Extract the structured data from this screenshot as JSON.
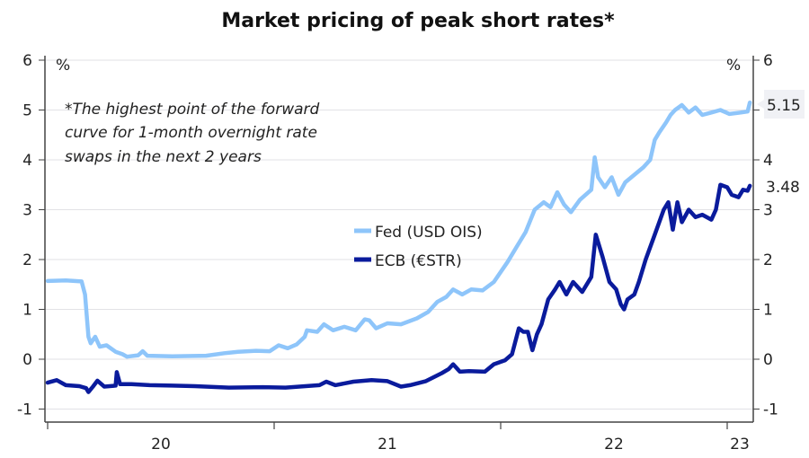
{
  "chart_data": {
    "type": "line",
    "title": "Market pricing of peak short rates*",
    "note": [
      "*The highest point of the forward",
      "curve for 1-month overnight rate",
      "swaps in the next 2 years"
    ],
    "ylabel_left": "%",
    "ylabel_right": "%",
    "ylim": [
      -1,
      6
    ],
    "yticks": [
      -1,
      0,
      1,
      2,
      3,
      4,
      5,
      6
    ],
    "yticks_right": [
      -1,
      0,
      1,
      2,
      3,
      4,
      6
    ],
    "xlim": [
      2020.0,
      2023.12
    ],
    "xticks": [
      2020,
      2021,
      2022,
      2023
    ],
    "xtick_labels": [
      "20",
      "21",
      "22",
      "23"
    ],
    "grid": true,
    "legend_position": "center",
    "series": [
      {
        "name": "Fed (USD OIS)",
        "color": "#8ec5fa",
        "end_label": "5.15",
        "points": [
          [
            2020.0,
            1.57
          ],
          [
            2020.08,
            1.58
          ],
          [
            2020.15,
            1.56
          ],
          [
            2020.165,
            1.3
          ],
          [
            2020.18,
            0.45
          ],
          [
            2020.19,
            0.32
          ],
          [
            2020.21,
            0.45
          ],
          [
            2020.23,
            0.25
          ],
          [
            2020.26,
            0.28
          ],
          [
            2020.3,
            0.15
          ],
          [
            2020.33,
            0.1
          ],
          [
            2020.35,
            0.05
          ],
          [
            2020.4,
            0.08
          ],
          [
            2020.42,
            0.16
          ],
          [
            2020.44,
            0.07
          ],
          [
            2020.55,
            0.06
          ],
          [
            2020.7,
            0.07
          ],
          [
            2020.78,
            0.12
          ],
          [
            2020.84,
            0.15
          ],
          [
            2020.92,
            0.17
          ],
          [
            2020.98,
            0.16
          ],
          [
            2021.02,
            0.28
          ],
          [
            2021.06,
            0.22
          ],
          [
            2021.1,
            0.3
          ],
          [
            2021.135,
            0.45
          ],
          [
            2021.145,
            0.58
          ],
          [
            2021.19,
            0.55
          ],
          [
            2021.22,
            0.7
          ],
          [
            2021.26,
            0.58
          ],
          [
            2021.31,
            0.65
          ],
          [
            2021.36,
            0.58
          ],
          [
            2021.4,
            0.8
          ],
          [
            2021.42,
            0.78
          ],
          [
            2021.45,
            0.62
          ],
          [
            2021.5,
            0.72
          ],
          [
            2021.56,
            0.7
          ],
          [
            2021.63,
            0.82
          ],
          [
            2021.68,
            0.95
          ],
          [
            2021.72,
            1.15
          ],
          [
            2021.76,
            1.25
          ],
          [
            2021.79,
            1.4
          ],
          [
            2021.83,
            1.3
          ],
          [
            2021.87,
            1.4
          ],
          [
            2021.92,
            1.38
          ],
          [
            2021.97,
            1.55
          ],
          [
            2022.03,
            1.95
          ],
          [
            2022.07,
            2.25
          ],
          [
            2022.11,
            2.55
          ],
          [
            2022.15,
            3.0
          ],
          [
            2022.19,
            3.15
          ],
          [
            2022.22,
            3.05
          ],
          [
            2022.25,
            3.35
          ],
          [
            2022.28,
            3.1
          ],
          [
            2022.31,
            2.95
          ],
          [
            2022.35,
            3.2
          ],
          [
            2022.4,
            3.4
          ],
          [
            2022.415,
            4.05
          ],
          [
            2022.43,
            3.65
          ],
          [
            2022.46,
            3.45
          ],
          [
            2022.49,
            3.65
          ],
          [
            2022.52,
            3.3
          ],
          [
            2022.55,
            3.55
          ],
          [
            2022.59,
            3.7
          ],
          [
            2022.63,
            3.85
          ],
          [
            2022.66,
            4.0
          ],
          [
            2022.68,
            4.4
          ],
          [
            2022.7,
            4.55
          ],
          [
            2022.73,
            4.75
          ],
          [
            2022.75,
            4.9
          ],
          [
            2022.77,
            5.0
          ],
          [
            2022.8,
            5.1
          ],
          [
            2022.83,
            4.95
          ],
          [
            2022.86,
            5.05
          ],
          [
            2022.89,
            4.9
          ],
          [
            2022.93,
            4.95
          ],
          [
            2022.97,
            5.0
          ],
          [
            2023.01,
            4.92
          ],
          [
            2023.06,
            4.95
          ],
          [
            2023.09,
            4.97
          ],
          [
            2023.1,
            5.15
          ]
        ]
      },
      {
        "name": "ECB (€STR)",
        "color": "#0a1b9c",
        "end_label": "3.48",
        "points": [
          [
            2020.0,
            -0.47
          ],
          [
            2020.04,
            -0.42
          ],
          [
            2020.08,
            -0.52
          ],
          [
            2020.14,
            -0.54
          ],
          [
            2020.17,
            -0.58
          ],
          [
            2020.18,
            -0.66
          ],
          [
            2020.2,
            -0.55
          ],
          [
            2020.22,
            -0.43
          ],
          [
            2020.25,
            -0.55
          ],
          [
            2020.3,
            -0.53
          ],
          [
            2020.305,
            -0.26
          ],
          [
            2020.32,
            -0.5
          ],
          [
            2020.37,
            -0.5
          ],
          [
            2020.45,
            -0.52
          ],
          [
            2020.55,
            -0.53
          ],
          [
            2020.65,
            -0.54
          ],
          [
            2020.8,
            -0.57
          ],
          [
            2020.95,
            -0.56
          ],
          [
            2021.05,
            -0.57
          ],
          [
            2021.2,
            -0.52
          ],
          [
            2021.23,
            -0.45
          ],
          [
            2021.27,
            -0.52
          ],
          [
            2021.35,
            -0.45
          ],
          [
            2021.43,
            -0.42
          ],
          [
            2021.5,
            -0.44
          ],
          [
            2021.56,
            -0.55
          ],
          [
            2021.6,
            -0.52
          ],
          [
            2021.67,
            -0.44
          ],
          [
            2021.74,
            -0.28
          ],
          [
            2021.77,
            -0.2
          ],
          [
            2021.79,
            -0.1
          ],
          [
            2021.82,
            -0.25
          ],
          [
            2021.86,
            -0.24
          ],
          [
            2021.93,
            -0.25
          ],
          [
            2021.97,
            -0.1
          ],
          [
            2022.02,
            -0.02
          ],
          [
            2022.05,
            0.1
          ],
          [
            2022.08,
            0.62
          ],
          [
            2022.1,
            0.55
          ],
          [
            2022.12,
            0.55
          ],
          [
            2022.14,
            0.18
          ],
          [
            2022.16,
            0.5
          ],
          [
            2022.18,
            0.7
          ],
          [
            2022.21,
            1.2
          ],
          [
            2022.24,
            1.4
          ],
          [
            2022.26,
            1.55
          ],
          [
            2022.29,
            1.3
          ],
          [
            2022.32,
            1.55
          ],
          [
            2022.36,
            1.35
          ],
          [
            2022.4,
            1.65
          ],
          [
            2022.42,
            2.5
          ],
          [
            2022.45,
            2.05
          ],
          [
            2022.48,
            1.55
          ],
          [
            2022.51,
            1.4
          ],
          [
            2022.53,
            1.1
          ],
          [
            2022.545,
            1.0
          ],
          [
            2022.56,
            1.2
          ],
          [
            2022.59,
            1.3
          ],
          [
            2022.61,
            1.55
          ],
          [
            2022.64,
            2.0
          ],
          [
            2022.68,
            2.5
          ],
          [
            2022.72,
            3.0
          ],
          [
            2022.74,
            3.15
          ],
          [
            2022.76,
            2.6
          ],
          [
            2022.78,
            3.15
          ],
          [
            2022.8,
            2.75
          ],
          [
            2022.83,
            3.0
          ],
          [
            2022.86,
            2.85
          ],
          [
            2022.89,
            2.9
          ],
          [
            2022.93,
            2.8
          ],
          [
            2022.95,
            3.0
          ],
          [
            2022.97,
            3.5
          ],
          [
            2023.0,
            3.45
          ],
          [
            2023.02,
            3.3
          ],
          [
            2023.05,
            3.25
          ],
          [
            2023.07,
            3.4
          ],
          [
            2023.09,
            3.38
          ],
          [
            2023.1,
            3.48
          ]
        ]
      }
    ]
  }
}
